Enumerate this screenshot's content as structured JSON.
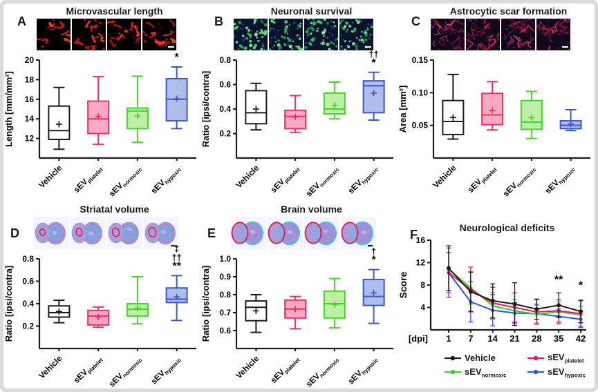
{
  "frame": {
    "border_color": "#d9d9d9",
    "background": "#ffffff"
  },
  "palette": {
    "vehicle": {
      "stroke": "#1a1a1a",
      "fill": "#ffffff",
      "line": "#1a1a1a"
    },
    "platelet": {
      "stroke": "#ed2e68",
      "fill": "#f8a9c1",
      "line": "#e8175c"
    },
    "normoxic": {
      "stroke": "#46d42c",
      "fill": "#bdefa5",
      "line": "#3ecf2a"
    },
    "hypoxic": {
      "stroke": "#3c57c8",
      "fill": "#aebde9",
      "line": "#2f52e0"
    }
  },
  "chart_data": [
    {
      "panel_letter": "A",
      "title": "Microvascular length",
      "type": "box",
      "ylabel": "Length [mm/mm²]",
      "ylim": [
        10,
        20
      ],
      "ytick_values": [
        12,
        14,
        16,
        18,
        20
      ],
      "ytick_labels": [
        "12",
        "14",
        "16",
        "18",
        "20"
      ],
      "categories": [
        {
          "base": "Vehicle",
          "sub": ""
        },
        {
          "base": "sEV",
          "sub": "platelet"
        },
        {
          "base": "sEV",
          "sub": "normoxic"
        },
        {
          "base": "sEV",
          "sub": "hypoxic"
        }
      ],
      "boxes": [
        {
          "group": "Vehicle",
          "color_key": "vehicle",
          "whisker_low": 10.9,
          "q1": 11.9,
          "median": 12.8,
          "mean": 13.45,
          "q3": 15.3,
          "whisker_high": 17.2,
          "annotations": []
        },
        {
          "group": "sEV_platelet",
          "color_key": "platelet",
          "whisker_low": 11.4,
          "q1": 12.5,
          "median": 14.0,
          "mean": 14.25,
          "q3": 15.8,
          "whisker_high": 18.3,
          "annotations": []
        },
        {
          "group": "sEV_normoxic",
          "color_key": "normoxic",
          "whisker_low": 11.6,
          "q1": 13.0,
          "median": 14.8,
          "mean": 14.3,
          "q3": 15.1,
          "whisker_high": 18.35,
          "annotations": []
        },
        {
          "group": "sEV_hypoxic",
          "color_key": "hypoxic",
          "whisker_low": 13.0,
          "q1": 13.8,
          "median": 16.0,
          "mean": 16.05,
          "q3": 18.1,
          "whisker_high": 19.3,
          "annotations": [
            "*"
          ]
        }
      ],
      "micrographs": {
        "kind": "vessels",
        "count": 4,
        "scalebar_color": "#ffffff"
      }
    },
    {
      "panel_letter": "B",
      "title": "Neuronal survival",
      "type": "box",
      "ylabel": "Ratio [ipsi/contra]",
      "ylim": [
        0,
        0.8
      ],
      "ytick_values": [
        0.2,
        0.4,
        0.6,
        0.8
      ],
      "ytick_labels": [
        "0.2",
        "0.4",
        "0.6",
        "0.8"
      ],
      "categories": [
        {
          "base": "Vehicle",
          "sub": ""
        },
        {
          "base": "sEV",
          "sub": "platelet"
        },
        {
          "base": "sEV",
          "sub": "normoxic"
        },
        {
          "base": "sEV",
          "sub": "hypoxic"
        }
      ],
      "boxes": [
        {
          "group": "Vehicle",
          "color_key": "vehicle",
          "whisker_low": 0.23,
          "q1": 0.28,
          "median": 0.37,
          "mean": 0.4,
          "q3": 0.55,
          "whisker_high": 0.61,
          "annotations": []
        },
        {
          "group": "sEV_platelet",
          "color_key": "platelet",
          "whisker_low": 0.21,
          "q1": 0.24,
          "median": 0.34,
          "mean": 0.335,
          "q3": 0.39,
          "whisker_high": 0.51,
          "annotations": []
        },
        {
          "group": "sEV_normoxic",
          "color_key": "normoxic",
          "whisker_low": 0.32,
          "q1": 0.36,
          "median": 0.4,
          "mean": 0.43,
          "q3": 0.53,
          "whisker_high": 0.62,
          "annotations": []
        },
        {
          "group": "sEV_hypoxic",
          "color_key": "hypoxic",
          "whisker_low": 0.31,
          "q1": 0.37,
          "median": 0.59,
          "mean": 0.53,
          "q3": 0.63,
          "whisker_high": 0.7,
          "annotations": [
            "††",
            "*"
          ]
        }
      ],
      "micrographs": {
        "kind": "neurons",
        "count": 4,
        "scalebar_color": "#ffffff"
      }
    },
    {
      "panel_letter": "C",
      "title": "Astrocytic scar formation",
      "type": "box",
      "ylabel": "Area [mm²]",
      "ylim": [
        0,
        0.15
      ],
      "ytick_values": [
        0.05,
        0.1,
        0.15
      ],
      "ytick_labels": [
        "0.05",
        "0.10",
        "0.15"
      ],
      "categories": [
        {
          "base": "Vehicle",
          "sub": ""
        },
        {
          "base": "sEV",
          "sub": "platelet"
        },
        {
          "base": "sEV",
          "sub": "normoxic"
        },
        {
          "base": "sEV",
          "sub": "hypoxic"
        }
      ],
      "boxes": [
        {
          "group": "Vehicle",
          "color_key": "vehicle",
          "whisker_low": 0.029,
          "q1": 0.036,
          "median": 0.056,
          "mean": 0.062,
          "q3": 0.088,
          "whisker_high": 0.128,
          "annotations": []
        },
        {
          "group": "sEV_platelet",
          "color_key": "platelet",
          "whisker_low": 0.043,
          "q1": 0.051,
          "median": 0.066,
          "mean": 0.073,
          "q3": 0.099,
          "whisker_high": 0.117,
          "annotations": []
        },
        {
          "group": "sEV_normoxic",
          "color_key": "normoxic",
          "whisker_low": 0.03,
          "q1": 0.044,
          "median": 0.055,
          "mean": 0.062,
          "q3": 0.088,
          "whisker_high": 0.102,
          "annotations": []
        },
        {
          "group": "sEV_hypoxic",
          "color_key": "hypoxic",
          "whisker_low": 0.042,
          "q1": 0.045,
          "median": 0.05,
          "mean": 0.052,
          "q3": 0.057,
          "whisker_high": 0.074,
          "annotations": []
        }
      ],
      "micrographs": {
        "kind": "astrocytes",
        "count": 4,
        "scalebar_color": "#ffffff"
      }
    },
    {
      "panel_letter": "D",
      "title": "Striatal volume",
      "type": "box",
      "ylabel": "Ratio [ipsi/contra]",
      "ylim": [
        0,
        0.8
      ],
      "ytick_values": [
        0.2,
        0.4,
        0.6,
        0.8
      ],
      "ytick_labels": [
        "0.2",
        "0.4",
        "0.6",
        "0.8"
      ],
      "categories": [
        {
          "base": "Vehicle",
          "sub": ""
        },
        {
          "base": "sEV",
          "sub": "platelet"
        },
        {
          "base": "sEV",
          "sub": "normoxic"
        },
        {
          "base": "sEV",
          "sub": "hypoxic"
        }
      ],
      "boxes": [
        {
          "group": "Vehicle",
          "color_key": "vehicle",
          "whisker_low": 0.23,
          "q1": 0.28,
          "median": 0.32,
          "mean": 0.33,
          "q3": 0.38,
          "whisker_high": 0.43,
          "annotations": []
        },
        {
          "group": "sEV_platelet",
          "color_key": "platelet",
          "whisker_low": 0.19,
          "q1": 0.21,
          "median": 0.29,
          "mean": 0.28,
          "q3": 0.34,
          "whisker_high": 0.37,
          "annotations": []
        },
        {
          "group": "sEV_normoxic",
          "color_key": "normoxic",
          "whisker_low": 0.22,
          "q1": 0.29,
          "median": 0.35,
          "mean": 0.36,
          "q3": 0.4,
          "whisker_high": 0.64,
          "annotations": []
        },
        {
          "group": "sEV_hypoxic",
          "color_key": "hypoxic",
          "whisker_low": 0.25,
          "q1": 0.41,
          "median": 0.44,
          "mean": 0.46,
          "q3": 0.54,
          "whisker_high": 0.65,
          "annotations": [
            "‡",
            "††",
            "**"
          ]
        }
      ],
      "micrographs": {
        "kind": "brain-striatum",
        "count": 4,
        "scalebar_color": "#1a1a1a"
      }
    },
    {
      "panel_letter": "E",
      "title": "Brain volume",
      "type": "box",
      "ylabel": "Ratio [ipsi/contra]",
      "ylim": [
        0.5,
        1.0
      ],
      "ytick_values": [
        0.6,
        0.7,
        0.8,
        0.9,
        1.0
      ],
      "ytick_labels": [
        "0.6",
        "0.7",
        "0.8",
        "0.9",
        "1.0"
      ],
      "categories": [
        {
          "base": "Vehicle",
          "sub": ""
        },
        {
          "base": "sEV",
          "sub": "platelet"
        },
        {
          "base": "sEV",
          "sub": "normoxic"
        },
        {
          "base": "sEV",
          "sub": "hypoxic"
        }
      ],
      "boxes": [
        {
          "group": "Vehicle",
          "color_key": "vehicle",
          "whisker_low": 0.59,
          "q1": 0.655,
          "median": 0.73,
          "mean": 0.71,
          "q3": 0.765,
          "whisker_high": 0.8,
          "annotations": []
        },
        {
          "group": "sEV_platelet",
          "color_key": "platelet",
          "whisker_low": 0.61,
          "q1": 0.67,
          "median": 0.72,
          "mean": 0.72,
          "q3": 0.77,
          "whisker_high": 0.79,
          "annotations": []
        },
        {
          "group": "sEV_normoxic",
          "color_key": "normoxic",
          "whisker_low": 0.615,
          "q1": 0.67,
          "median": 0.75,
          "mean": 0.745,
          "q3": 0.82,
          "whisker_high": 0.89,
          "annotations": []
        },
        {
          "group": "sEV_hypoxic",
          "color_key": "hypoxic",
          "whisker_low": 0.64,
          "q1": 0.74,
          "median": 0.79,
          "mean": 0.81,
          "q3": 0.885,
          "whisker_high": 0.94,
          "annotations": [
            "†",
            "*"
          ]
        }
      ],
      "micrographs": {
        "kind": "brain-hemisphere",
        "count": 4,
        "scalebar_color": "#1a1a1a"
      }
    },
    {
      "panel_letter": "F",
      "title": "Neurological deficits",
      "type": "line",
      "ylabel": "Score",
      "xlabel": "[dpi]",
      "x_tick_labels": [
        "1",
        "7",
        "14",
        "21",
        "28",
        "35",
        "42"
      ],
      "ylim": [
        0,
        16
      ],
      "ytick_values": [
        4,
        8,
        12,
        16
      ],
      "ytick_labels": [
        "4",
        "8",
        "12",
        "16"
      ],
      "series": [
        {
          "name": "Vehicle",
          "sub": "",
          "color_key": "vehicle",
          "values": [
            11.0,
            6.8,
            5.2,
            4.6,
            3.7,
            4.4,
            3.3
          ],
          "errors": [
            4.0,
            3.5,
            3.0,
            3.8,
            1.8,
            2.2,
            2.0
          ]
        },
        {
          "name": "sEV",
          "sub": "platelet",
          "color_key": "platelet",
          "values": [
            10.2,
            7.2,
            4.8,
            4.0,
            3.2,
            3.4,
            2.9
          ],
          "errors": [
            4.4,
            4.0,
            2.8,
            2.6,
            2.2,
            2.0,
            2.3
          ]
        },
        {
          "name": "sEV",
          "sub": "normoxic",
          "color_key": "normoxic",
          "values": [
            10.8,
            7.5,
            4.3,
            3.4,
            2.8,
            3.2,
            2.7
          ],
          "errors": [
            3.8,
            2.9,
            2.4,
            2.0,
            1.6,
            1.8,
            1.5
          ]
        },
        {
          "name": "sEV",
          "sub": "hypoxic",
          "color_key": "hypoxic",
          "values": [
            10.2,
            5.0,
            3.5,
            3.0,
            2.9,
            2.4,
            1.9
          ],
          "errors": [
            3.6,
            3.6,
            2.8,
            1.8,
            1.7,
            1.3,
            1.5
          ]
        }
      ],
      "annotations": [
        {
          "x_index": 5,
          "y": 8.4,
          "text": "**"
        },
        {
          "x_index": 6,
          "y": 7.3,
          "text": "*"
        }
      ],
      "legend_order": [
        "Vehicle",
        "sEV_platelet",
        "sEV_normoxic",
        "sEV_hypoxic"
      ]
    }
  ]
}
